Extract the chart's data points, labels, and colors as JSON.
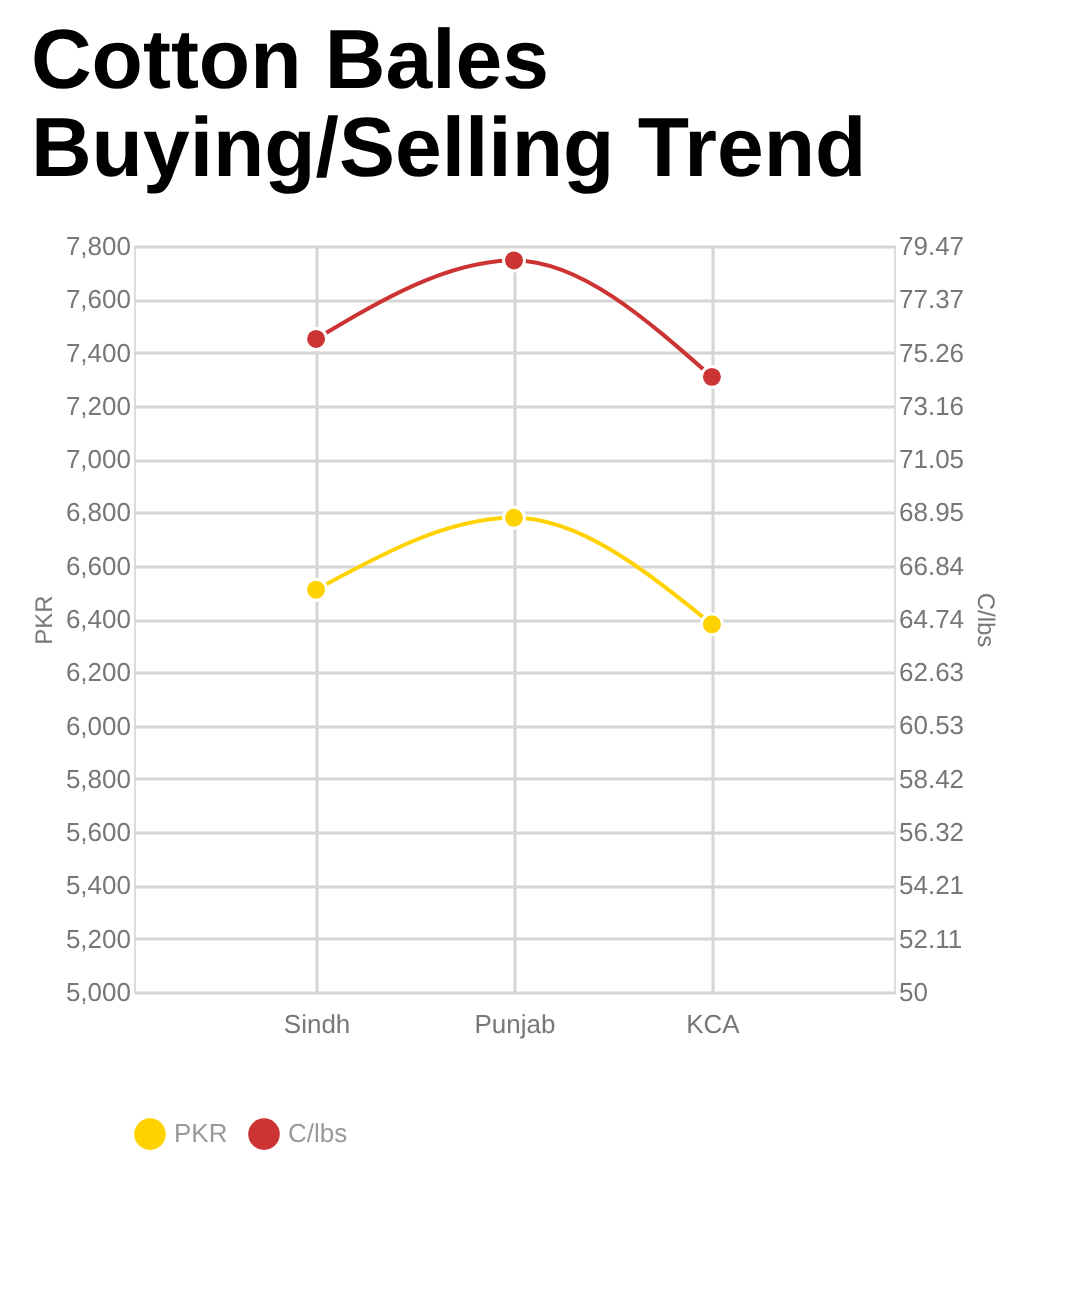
{
  "chart_data": {
    "type": "line",
    "title": "Cotton Bales Buying/Selling Trend",
    "categories": [
      "Sindh",
      "Punjab",
      "KCA"
    ],
    "series": [
      {
        "name": "PKR",
        "color": "#ffd200",
        "values": [
          6510,
          6780,
          6380
        ]
      },
      {
        "name": "C/lbs",
        "color": "#cc3333",
        "values": [
          75.8,
          78.9,
          74.3
        ],
        "axis": "y2"
      }
    ],
    "ylabel": "PKR",
    "y2label": "C/lbs",
    "ylim": [
      5000,
      7800
    ],
    "yticks": [
      {
        "value": 5000,
        "label": "5,000"
      },
      {
        "value": 5200,
        "label": "5,200"
      },
      {
        "value": 5400,
        "label": "5,400"
      },
      {
        "value": 5600,
        "label": "5,600"
      },
      {
        "value": 5800,
        "label": "5,800"
      },
      {
        "value": 6000,
        "label": "6,000"
      },
      {
        "value": 6200,
        "label": "6,200"
      },
      {
        "value": 6400,
        "label": "6,400"
      },
      {
        "value": 6600,
        "label": "6,600"
      },
      {
        "value": 6800,
        "label": "6,800"
      },
      {
        "value": 7000,
        "label": "7,000"
      },
      {
        "value": 7200,
        "label": "7,200"
      },
      {
        "value": 7400,
        "label": "7,400"
      },
      {
        "value": 7600,
        "label": "7,600"
      },
      {
        "value": 7800,
        "label": "7,800"
      }
    ],
    "y2lim": [
      50,
      79.47
    ],
    "y2ticks": [
      50,
      52.11,
      54.21,
      56.32,
      58.42,
      60.53,
      62.63,
      64.74,
      66.84,
      68.95,
      71.05,
      73.16,
      75.26,
      77.37,
      79.47
    ],
    "grid": true,
    "legend": "bottom",
    "marker": "circle",
    "line_style": "solid"
  }
}
